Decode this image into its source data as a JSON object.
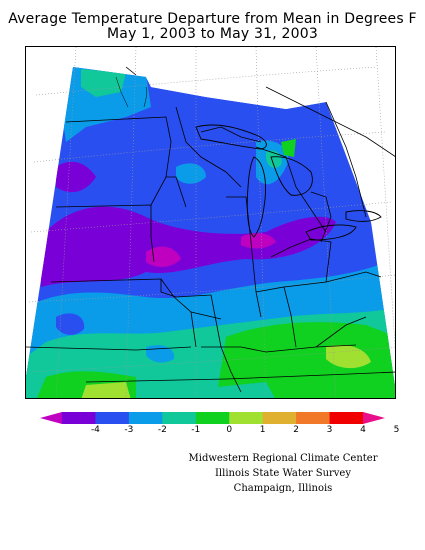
{
  "title": {
    "line1": "Average Temperature Departure from Mean in Degrees F",
    "line2": "May 1, 2003 to May 31, 2003"
  },
  "legend": {
    "ticks": [
      "-4",
      "-3",
      "-2",
      "-1",
      "0",
      "1",
      "2",
      "3",
      "4",
      "5"
    ],
    "colors": [
      "#c000c0",
      "#7a00d8",
      "#2a4ff0",
      "#0a9ce8",
      "#10c89a",
      "#10d020",
      "#a0e030",
      "#e0b030",
      "#f07828",
      "#f00000",
      "#e8108a"
    ]
  },
  "credits": {
    "line1": "Midwestern Regional Climate Center",
    "line2": "Illinois State Water Survey",
    "line3": "Champaign, Illinois"
  },
  "map": {
    "region": "Midwest",
    "month": "May 2003"
  }
}
